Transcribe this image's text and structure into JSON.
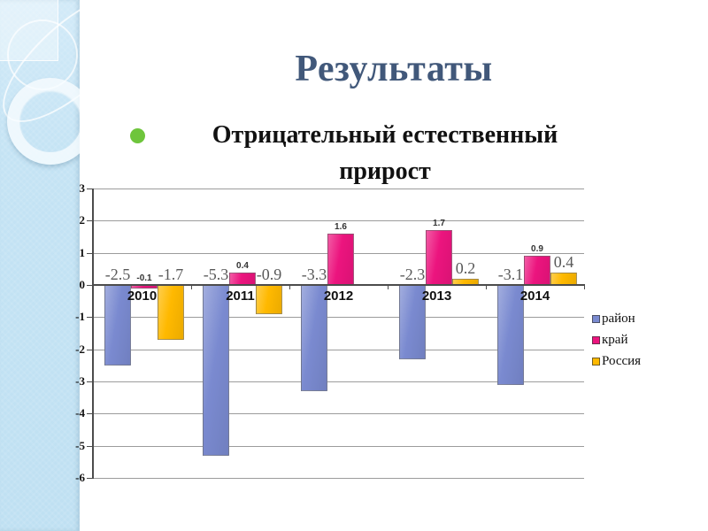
{
  "slide": {
    "title": "Результаты",
    "bullet": {
      "text": "Отрицательный естественный прирост",
      "marker_color": "#6ec53c"
    },
    "title_color": "#41587a"
  },
  "chart_data": {
    "type": "bar",
    "title": "",
    "xlabel": "",
    "ylabel": "",
    "categories": [
      "2010",
      "2011",
      "2012",
      "2013",
      "2014"
    ],
    "series": [
      {
        "name": "район",
        "color": "#7a8ad0",
        "values": [
          -2.5,
          -5.3,
          -3.3,
          -2.3,
          -3.1
        ]
      },
      {
        "name": "край",
        "color": "#ec147e",
        "values": [
          -0.1,
          0.4,
          1.6,
          1.7,
          0.9
        ]
      },
      {
        "name": "Россия",
        "color": "#ffb900",
        "values": [
          -1.7,
          -0.9,
          null,
          0.2,
          0.4
        ]
      }
    ],
    "ylim": [
      -6,
      3
    ],
    "ytick_step": 1,
    "grid": true,
    "legend_position": "right",
    "data_labels": true
  }
}
